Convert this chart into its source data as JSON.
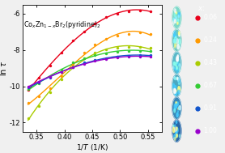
{
  "title": "Co$_x$Zn$_{1-x}$Br$_2$(pyridine)$_2$",
  "xlabel": "1/T (1/K)",
  "ylabel": "ln τ",
  "xlim": [
    0.325,
    0.575
  ],
  "ylim": [
    -12.5,
    -5.5
  ],
  "xticks": [
    0.35,
    0.4,
    0.45,
    0.5,
    0.55
  ],
  "yticks": [
    -12,
    -10,
    -8,
    -6
  ],
  "series": [
    {
      "label": "0.06",
      "color": "#e8001a",
      "x": [
        0.335,
        0.355,
        0.375,
        0.395,
        0.415,
        0.435,
        0.455,
        0.475,
        0.495,
        0.515,
        0.535,
        0.555
      ],
      "y": [
        -10.2,
        -9.55,
        -8.85,
        -8.15,
        -7.5,
        -7.0,
        -6.55,
        -6.2,
        -6.0,
        -5.85,
        -5.82,
        -5.85
      ]
    },
    {
      "label": "0.24",
      "color": "#ff9900",
      "x": [
        0.335,
        0.355,
        0.375,
        0.395,
        0.415,
        0.435,
        0.455,
        0.475,
        0.495,
        0.515,
        0.535,
        0.555
      ],
      "y": [
        -10.9,
        -10.55,
        -10.1,
        -9.45,
        -8.75,
        -8.15,
        -7.7,
        -7.4,
        -7.2,
        -7.1,
        -7.05,
        -7.1
      ]
    },
    {
      "label": "0.43",
      "color": "#aacc00",
      "x": [
        0.335,
        0.355,
        0.375,
        0.395,
        0.415,
        0.435,
        0.455,
        0.475,
        0.495,
        0.515,
        0.535,
        0.555
      ],
      "y": [
        -11.75,
        -11.1,
        -10.35,
        -9.6,
        -8.9,
        -8.45,
        -8.15,
        -7.95,
        -7.88,
        -7.85,
        -7.85,
        -7.9
      ]
    },
    {
      "label": "0.67",
      "color": "#33cc33",
      "x": [
        0.335,
        0.355,
        0.375,
        0.395,
        0.415,
        0.435,
        0.455,
        0.475,
        0.495,
        0.515,
        0.535,
        0.555
      ],
      "y": [
        -10.15,
        -9.85,
        -9.5,
        -9.1,
        -8.7,
        -8.45,
        -8.28,
        -8.17,
        -8.1,
        -8.07,
        -8.05,
        -8.05
      ]
    },
    {
      "label": "0.91",
      "color": "#1155cc",
      "x": [
        0.335,
        0.355,
        0.375,
        0.395,
        0.415,
        0.435,
        0.455,
        0.475,
        0.495,
        0.515,
        0.535,
        0.555
      ],
      "y": [
        -10.05,
        -9.8,
        -9.52,
        -9.22,
        -8.93,
        -8.7,
        -8.55,
        -8.44,
        -8.38,
        -8.33,
        -8.3,
        -8.28
      ]
    },
    {
      "label": "1.00",
      "color": "#9900cc",
      "x": [
        0.335,
        0.355,
        0.375,
        0.395,
        0.415,
        0.435,
        0.455,
        0.475,
        0.495,
        0.515,
        0.535,
        0.555
      ],
      "y": [
        -10.0,
        -9.75,
        -9.48,
        -9.2,
        -8.95,
        -8.75,
        -8.6,
        -8.5,
        -8.43,
        -8.38,
        -8.36,
        -8.35
      ]
    }
  ],
  "right_panel_bg": "#000000",
  "circle_colors": [
    [
      "#a8e8d0",
      "#5cc8b0",
      "#30a890",
      "#208870"
    ],
    [
      "#90d8c8",
      "#50c0a8",
      "#28a888",
      "#188868"
    ],
    [
      "#78c8c0",
      "#40b0a8",
      "#209898",
      "#108878"
    ],
    [
      "#5098c8",
      "#2878b0",
      "#106898",
      "#085888"
    ],
    [
      "#3878b8",
      "#1858a0",
      "#084888",
      "#043870"
    ],
    [
      "#2858a0",
      "#083888",
      "#042870",
      "#021858"
    ]
  ],
  "figure_bg": "#f0f0f0"
}
